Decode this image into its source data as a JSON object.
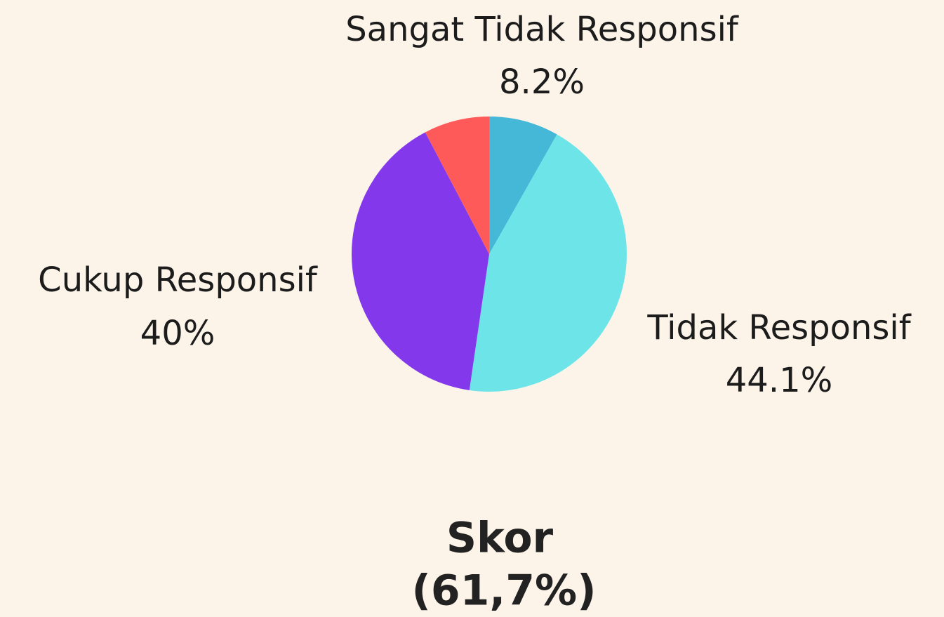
{
  "chart_data": {
    "type": "pie",
    "categories": [
      "Sangat Tidak Responsif",
      "Tidak Responsif",
      "Cukup Responsif",
      null
    ],
    "values": [
      8.2,
      44.1,
      40,
      7.7
    ],
    "value_labels": [
      "8.2%",
      "44.1%",
      "40%",
      null
    ],
    "colors": [
      "#45b8d8",
      "#6de5e8",
      "#8338ec",
      "#ff5a5a"
    ],
    "annotations": [
      "Skor",
      "(61,7%)"
    ]
  }
}
